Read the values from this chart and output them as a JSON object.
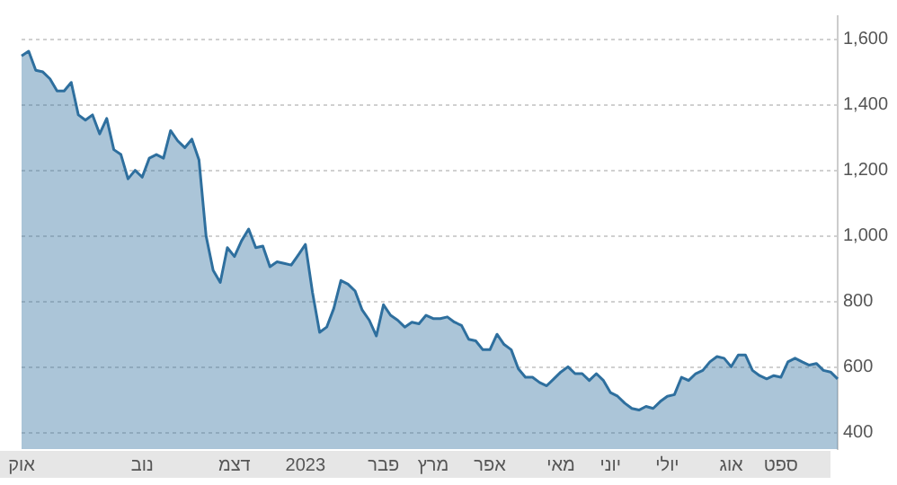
{
  "chart_data": {
    "type": "area",
    "categories": [
      "אוק",
      null,
      null,
      null,
      null,
      null,
      null,
      null,
      null,
      null,
      null,
      null,
      null,
      null,
      null,
      null,
      null,
      "נוב",
      null,
      null,
      null,
      null,
      null,
      null,
      null,
      null,
      null,
      null,
      null,
      null,
      "דצמ",
      null,
      null,
      null,
      null,
      null,
      null,
      null,
      null,
      null,
      "2023",
      null,
      null,
      null,
      null,
      null,
      null,
      null,
      null,
      null,
      null,
      "פבר",
      null,
      null,
      null,
      null,
      null,
      null,
      "מרץ",
      null,
      null,
      null,
      null,
      null,
      null,
      null,
      "אפר",
      null,
      null,
      null,
      null,
      null,
      null,
      null,
      null,
      null,
      "מאי",
      null,
      null,
      null,
      null,
      null,
      null,
      "יוני",
      null,
      null,
      null,
      null,
      null,
      null,
      null,
      "יולי",
      null,
      null,
      null,
      null,
      null,
      null,
      null,
      null,
      "אוג",
      null,
      null,
      null,
      null,
      null,
      null,
      "ספט",
      null,
      null,
      null,
      null,
      null,
      null,
      null,
      null
    ],
    "series": [
      {
        "color": "#2e6f9e",
        "values": [
          1549,
          1563,
          1505,
          1500,
          1479,
          1442,
          1442,
          1468,
          1369,
          1353,
          1369,
          1311,
          1358,
          1263,
          1248,
          1174,
          1200,
          1179,
          1237,
          1248,
          1237,
          1321,
          1290,
          1269,
          1295,
          1232,
          1000,
          895,
          858,
          964,
          937,
          985,
          1021,
          964,
          969,
          906,
          921,
          916,
          911,
          942,
          974,
          827,
          706,
          722,
          779,
          864,
          853,
          832,
          774,
          743,
          695,
          790,
          758,
          743,
          722,
          737,
          732,
          758,
          748,
          748,
          753,
          737,
          727,
          685,
          680,
          653,
          653,
          700,
          669,
          653,
          595,
          569,
          569,
          553,
          543,
          564,
          585,
          601,
          580,
          580,
          559,
          580,
          559,
          522,
          511,
          490,
          474,
          469,
          480,
          474,
          495,
          511,
          516,
          569,
          559,
          580,
          590,
          616,
          632,
          627,
          601,
          637,
          637,
          590,
          574,
          564,
          574,
          569,
          616,
          627,
          616,
          606,
          611,
          590,
          585,
          564
        ]
      }
    ],
    "ylim": [
      350,
      1670
    ],
    "yticks": [
      {
        "value": 400,
        "label": "400"
      },
      {
        "value": 600,
        "label": "600"
      },
      {
        "value": 800,
        "label": "800"
      },
      {
        "value": 1000,
        "label": "1,000"
      },
      {
        "value": 1200,
        "label": "1,200"
      },
      {
        "value": 1400,
        "label": "1,400"
      },
      {
        "value": 1600,
        "label": "1,600"
      }
    ],
    "grid": "y",
    "legend": false
  }
}
